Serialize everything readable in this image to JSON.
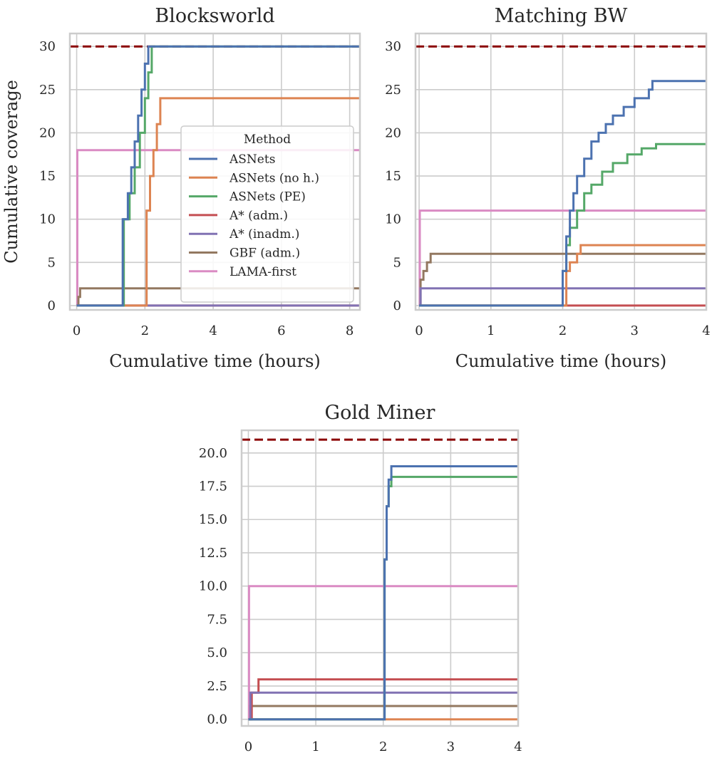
{
  "figure": {
    "legend": {
      "title": "Method",
      "placement": "lower-right of first panel",
      "entries": [
        {
          "label": "ASNets",
          "color": "#4c72b0"
        },
        {
          "label": "ASNets (no h.)",
          "color": "#dd8452"
        },
        {
          "label": "ASNets (PE)",
          "color": "#55a868"
        },
        {
          "label": "A* (adm.)",
          "color": "#c44e52"
        },
        {
          "label": "A* (inadm.)",
          "color": "#8172b3"
        },
        {
          "label": "GBF (adm.)",
          "color": "#937860"
        },
        {
          "label": "LAMA-first",
          "color": "#da8bc3"
        }
      ]
    }
  },
  "chart_data": [
    {
      "type": "line",
      "title": "Blocksworld",
      "xlabel": "Cumulative time (hours)",
      "ylabel": "Cumulative coverage",
      "xlim": [
        -0.2,
        8.3
      ],
      "ylim": [
        -0.5,
        31.5
      ],
      "xticks": [
        0,
        2,
        4,
        6,
        8
      ],
      "yticks": [
        0,
        5,
        10,
        15,
        20,
        25,
        30
      ],
      "xtick_labels": [
        "0",
        "2",
        "4",
        "6",
        "8"
      ],
      "ytick_labels": [
        "0",
        "5",
        "10",
        "15",
        "20",
        "25",
        "30"
      ],
      "grid": true,
      "reference_line": {
        "y": 30,
        "style": "dashed",
        "color": "#8b0000"
      },
      "series": [
        {
          "name": "ASNets",
          "color": "#4c72b0",
          "x": [
            0,
            1.33,
            1.35,
            1.5,
            1.6,
            1.7,
            1.8,
            1.9,
            2.0,
            2.1,
            8.3
          ],
          "y": [
            0,
            0,
            10,
            13,
            16,
            19,
            22,
            25,
            28,
            30,
            30
          ]
        },
        {
          "name": "ASNets (no h.)",
          "color": "#dd8452",
          "x": [
            0,
            2.0,
            2.05,
            2.15,
            2.25,
            2.35,
            2.45,
            8.3
          ],
          "y": [
            0,
            0,
            11,
            15,
            18,
            21,
            24,
            24
          ]
        },
        {
          "name": "ASNets (PE)",
          "color": "#55a868",
          "x": [
            0,
            1.33,
            1.38,
            1.55,
            1.7,
            1.85,
            2.0,
            2.1,
            2.2,
            8.3
          ],
          "y": [
            0,
            0,
            10,
            13,
            16,
            20,
            24,
            27,
            30,
            30
          ]
        },
        {
          "name": "A* (adm.)",
          "color": "#c44e52",
          "x": [
            0,
            8.3
          ],
          "y": [
            0,
            0
          ]
        },
        {
          "name": "A* (inadm.)",
          "color": "#8172b3",
          "x": [
            0,
            8.3
          ],
          "y": [
            0,
            0
          ]
        },
        {
          "name": "GBF (adm.)",
          "color": "#937860",
          "x": [
            0,
            0.05,
            0.05,
            0.1,
            0.1,
            8.3
          ],
          "y": [
            0,
            0,
            1,
            1,
            2,
            2
          ]
        },
        {
          "name": "LAMA-first",
          "color": "#da8bc3",
          "x": [
            0,
            0.02,
            0.02,
            8.3
          ],
          "y": [
            0,
            0,
            18,
            18
          ]
        }
      ]
    },
    {
      "type": "line",
      "title": "Matching BW",
      "xlabel": "Cumulative time (hours)",
      "ylabel": "",
      "xlim": [
        -0.05,
        4.0
      ],
      "ylim": [
        -0.5,
        31.5
      ],
      "xticks": [
        0,
        1,
        2,
        3,
        4
      ],
      "yticks": [
        0,
        5,
        10,
        15,
        20,
        25,
        30
      ],
      "xtick_labels": [
        "0",
        "1",
        "2",
        "3",
        "4"
      ],
      "ytick_labels": [
        "0",
        "5",
        "10",
        "15",
        "20",
        "25",
        "30"
      ],
      "grid": true,
      "reference_line": {
        "y": 30,
        "style": "dashed",
        "color": "#8b0000"
      },
      "series": [
        {
          "name": "ASNets",
          "color": "#4c72b0",
          "x": [
            0,
            2.0,
            2.0,
            2.05,
            2.1,
            2.15,
            2.2,
            2.3,
            2.4,
            2.5,
            2.6,
            2.7,
            2.85,
            3.0,
            3.2,
            3.25,
            4.0
          ],
          "y": [
            0,
            0,
            4,
            8,
            11,
            13,
            15,
            17,
            19,
            20,
            21,
            22,
            23,
            24,
            25,
            26,
            26
          ]
        },
        {
          "name": "ASNets (no h.)",
          "color": "#dd8452",
          "x": [
            0,
            2.0,
            2.05,
            2.1,
            2.2,
            2.25,
            4.0
          ],
          "y": [
            0,
            0,
            4,
            5,
            6,
            7,
            7
          ]
        },
        {
          "name": "ASNets (PE)",
          "color": "#55a868",
          "x": [
            0,
            2.0,
            2.0,
            2.05,
            2.1,
            2.2,
            2.3,
            2.4,
            2.55,
            2.7,
            2.9,
            3.1,
            3.3,
            4.0
          ],
          "y": [
            0,
            0,
            4,
            7,
            9,
            11,
            13,
            14,
            15.5,
            16.5,
            17.5,
            18.2,
            18.7,
            18.7
          ]
        },
        {
          "name": "A* (adm.)",
          "color": "#c44e52",
          "x": [
            0,
            4.0
          ],
          "y": [
            0,
            0
          ]
        },
        {
          "name": "A* (inadm.)",
          "color": "#8172b3",
          "x": [
            0,
            0.02,
            0.02,
            4.0
          ],
          "y": [
            0,
            0,
            2,
            2
          ]
        },
        {
          "name": "GBF (adm.)",
          "color": "#937860",
          "x": [
            0,
            0.02,
            0.02,
            0.06,
            0.06,
            0.11,
            0.11,
            0.16,
            0.16,
            4.0
          ],
          "y": [
            0,
            0,
            3,
            3,
            4,
            4,
            5,
            5,
            6,
            6
          ]
        },
        {
          "name": "LAMA-first",
          "color": "#da8bc3",
          "x": [
            0,
            0.01,
            0.01,
            4.0
          ],
          "y": [
            0,
            0,
            11,
            11
          ]
        }
      ]
    },
    {
      "type": "line",
      "title": "Gold Miner",
      "xlabel": "Cumulative time (hours)",
      "ylabel": "",
      "xlim": [
        -0.1,
        4.0
      ],
      "ylim": [
        -0.5,
        21.7
      ],
      "xticks": [
        0,
        1,
        2,
        3,
        4
      ],
      "yticks": [
        0,
        2.5,
        5,
        7.5,
        10,
        12.5,
        15,
        17.5,
        20
      ],
      "xtick_labels": [
        "0",
        "1",
        "2",
        "3",
        "4"
      ],
      "ytick_labels": [
        "0.0",
        "2.5",
        "5.0",
        "7.5",
        "10.0",
        "12.5",
        "15.0",
        "17.5",
        "20.0"
      ],
      "grid": true,
      "reference_line": {
        "y": 21,
        "style": "dashed",
        "color": "#8b0000"
      },
      "series": [
        {
          "name": "ASNets",
          "color": "#4c72b0",
          "x": [
            0,
            2.0,
            2.02,
            2.05,
            2.08,
            2.12,
            4.0
          ],
          "y": [
            0,
            0,
            12,
            16,
            18,
            19,
            19
          ]
        },
        {
          "name": "ASNets (no h.)",
          "color": "#dd8452",
          "x": [
            0,
            4.0
          ],
          "y": [
            0,
            0
          ]
        },
        {
          "name": "ASNets (PE)",
          "color": "#55a868",
          "x": [
            0,
            2.0,
            2.02,
            2.05,
            2.08,
            2.12,
            4.0
          ],
          "y": [
            0,
            0,
            12,
            16,
            17.5,
            18.2,
            18.2
          ]
        },
        {
          "name": "A* (adm.)",
          "color": "#c44e52",
          "x": [
            0,
            0.05,
            0.05,
            0.15,
            0.15,
            4.0
          ],
          "y": [
            0,
            0,
            2,
            2,
            3,
            3
          ]
        },
        {
          "name": "A* (inadm.)",
          "color": "#8172b3",
          "x": [
            0,
            0.03,
            0.03,
            4.0
          ],
          "y": [
            0,
            0,
            2,
            2
          ]
        },
        {
          "name": "GBF (adm.)",
          "color": "#937860",
          "x": [
            0,
            0.03,
            0.03,
            4.0
          ],
          "y": [
            0,
            0,
            1,
            1
          ]
        },
        {
          "name": "LAMA-first",
          "color": "#da8bc3",
          "x": [
            0,
            0.01,
            0.01,
            4.0
          ],
          "y": [
            0,
            0,
            10,
            10
          ]
        }
      ]
    }
  ]
}
